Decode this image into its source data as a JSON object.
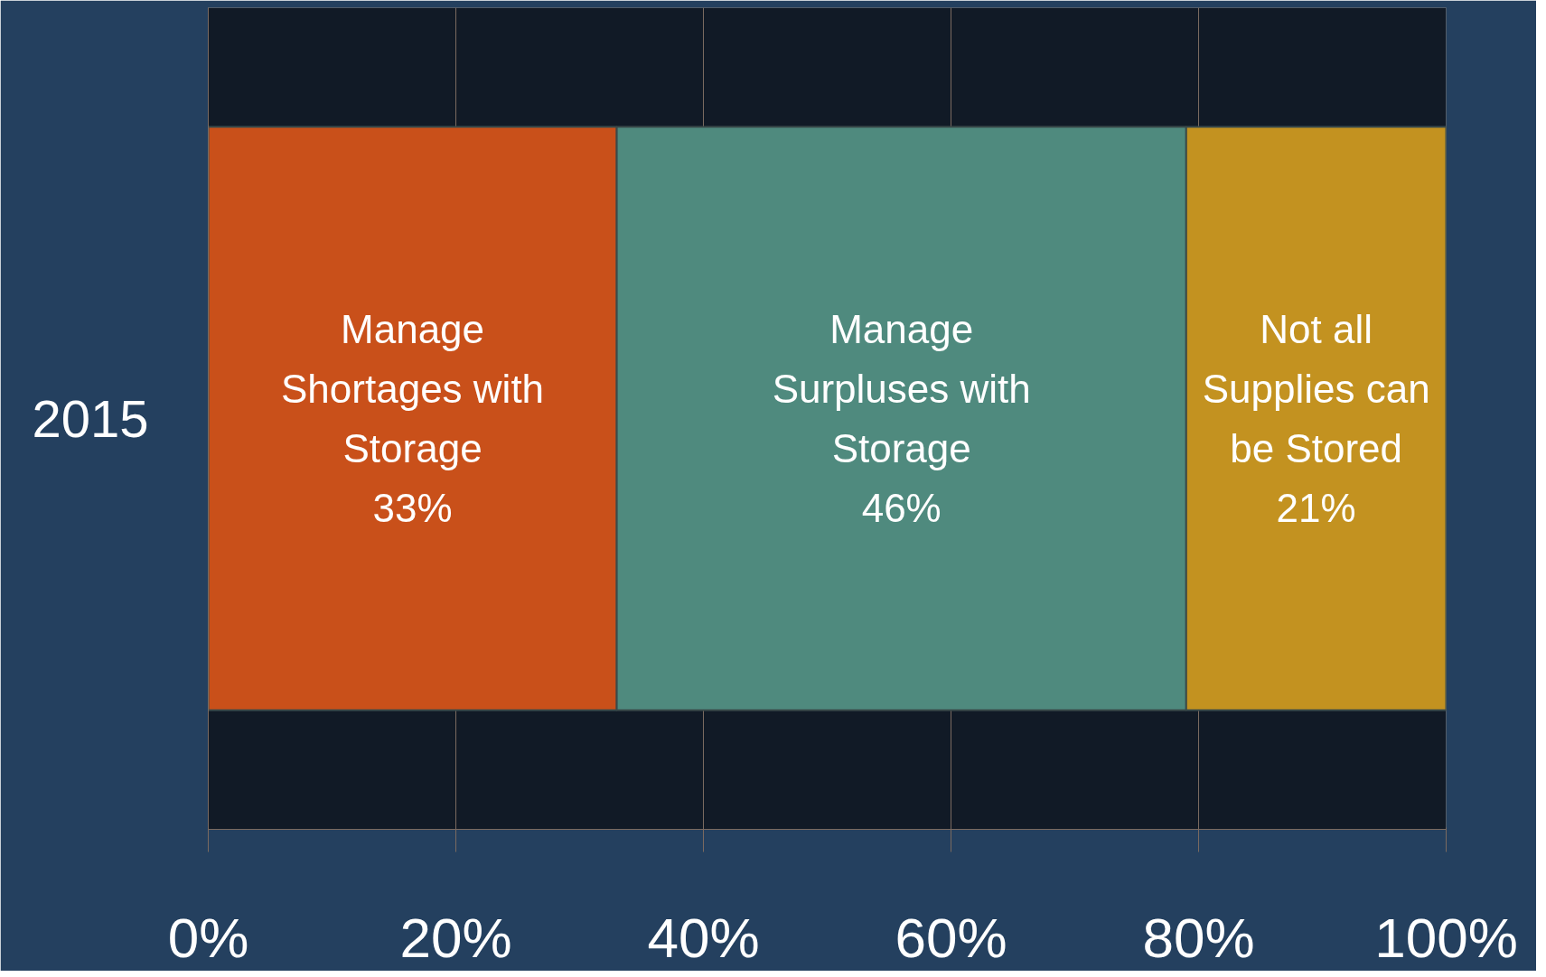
{
  "chart_data": {
    "type": "bar",
    "orientation": "horizontal",
    "stacked": true,
    "categories": [
      "2015"
    ],
    "series": [
      {
        "name": "Manage Shortages with Storage",
        "color": "#c9501a",
        "values": [
          33
        ],
        "value_labels": [
          "33%"
        ]
      },
      {
        "name": "Manage Surpluses with Storage",
        "color": "#4f8a7e",
        "values": [
          46
        ],
        "value_labels": [
          "46%"
        ]
      },
      {
        "name": "Not all Supplies can be Stored",
        "color": "#c39220",
        "values": [
          21
        ],
        "value_labels": [
          "21%"
        ]
      }
    ],
    "xlim": [
      0,
      100
    ],
    "xticks": [
      {
        "value": 0,
        "label": "0%"
      },
      {
        "value": 20,
        "label": "20%"
      },
      {
        "value": 40,
        "label": "40%"
      },
      {
        "value": 60,
        "label": "60%"
      },
      {
        "value": 80,
        "label": "80%"
      },
      {
        "value": 100,
        "label": "100%"
      }
    ],
    "grid": "x"
  }
}
